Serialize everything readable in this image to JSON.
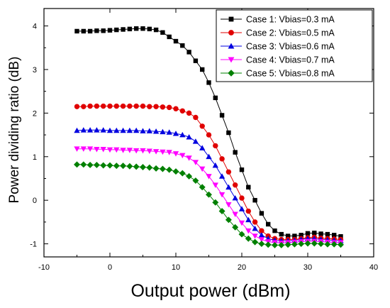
{
  "chart_data": {
    "type": "line",
    "title": "",
    "xlabel": "Output power (dBm)",
    "ylabel": "Power dividing ratio (dB)",
    "xlim": [
      -10,
      40
    ],
    "ylim": [
      -1.3,
      4.4
    ],
    "xticks": [
      -10,
      0,
      10,
      20,
      30,
      40
    ],
    "yticks": [
      -1,
      0,
      1,
      2,
      3,
      4
    ],
    "x_tick_labels": [
      "-10",
      "0",
      "10",
      "20",
      "30",
      "40"
    ],
    "y_tick_labels": [
      "-1",
      "0",
      "1",
      "2",
      "3",
      "4"
    ],
    "grid": false,
    "legend_position": "top-right",
    "x": [
      -5,
      -4,
      -3,
      -2,
      -1,
      0,
      1,
      2,
      3,
      4,
      5,
      6,
      7,
      8,
      9,
      10,
      11,
      12,
      13,
      14,
      15,
      16,
      17,
      18,
      19,
      20,
      21,
      22,
      23,
      24,
      25,
      26,
      27,
      28,
      29,
      30,
      31,
      32,
      33,
      34,
      35
    ],
    "series": [
      {
        "name": "Case 1: Vbias=0.3 mA",
        "marker": "square",
        "color": "#000000",
        "values": [
          3.88,
          3.88,
          3.88,
          3.89,
          3.89,
          3.9,
          3.91,
          3.92,
          3.93,
          3.94,
          3.94,
          3.93,
          3.91,
          3.85,
          3.75,
          3.65,
          3.55,
          3.4,
          3.2,
          3.0,
          2.7,
          2.35,
          1.95,
          1.55,
          1.1,
          0.7,
          0.3,
          0.0,
          -0.3,
          -0.55,
          -0.7,
          -0.78,
          -0.82,
          -0.82,
          -0.8,
          -0.76,
          -0.75,
          -0.77,
          -0.78,
          -0.8,
          -0.83
        ]
      },
      {
        "name": "Case 2: Vbias=0.5 mA",
        "marker": "circle",
        "color": "#e00000",
        "values": [
          2.15,
          2.15,
          2.16,
          2.16,
          2.16,
          2.16,
          2.16,
          2.16,
          2.16,
          2.16,
          2.16,
          2.15,
          2.15,
          2.14,
          2.13,
          2.1,
          2.05,
          2.0,
          1.9,
          1.7,
          1.5,
          1.25,
          0.95,
          0.65,
          0.35,
          0.05,
          -0.25,
          -0.5,
          -0.7,
          -0.82,
          -0.88,
          -0.9,
          -0.9,
          -0.9,
          -0.88,
          -0.86,
          -0.85,
          -0.87,
          -0.88,
          -0.89,
          -0.9
        ]
      },
      {
        "name": "Case 3: Vbias=0.6 mA",
        "marker": "triangle-up",
        "color": "#0000e0",
        "values": [
          1.6,
          1.61,
          1.61,
          1.61,
          1.61,
          1.6,
          1.6,
          1.6,
          1.6,
          1.6,
          1.59,
          1.59,
          1.58,
          1.57,
          1.56,
          1.53,
          1.5,
          1.45,
          1.35,
          1.2,
          1.0,
          0.8,
          0.55,
          0.3,
          0.05,
          -0.2,
          -0.45,
          -0.65,
          -0.8,
          -0.88,
          -0.92,
          -0.93,
          -0.93,
          -0.92,
          -0.9,
          -0.88,
          -0.88,
          -0.9,
          -0.91,
          -0.92,
          -0.93
        ]
      },
      {
        "name": "Case 4: Vbias=0.7 mA",
        "marker": "triangle-down",
        "color": "#ff00ff",
        "values": [
          1.18,
          1.18,
          1.18,
          1.17,
          1.17,
          1.16,
          1.16,
          1.15,
          1.15,
          1.14,
          1.14,
          1.13,
          1.12,
          1.11,
          1.1,
          1.07,
          1.03,
          0.97,
          0.87,
          0.72,
          0.55,
          0.35,
          0.13,
          -0.1,
          -0.32,
          -0.52,
          -0.7,
          -0.82,
          -0.9,
          -0.95,
          -0.97,
          -0.98,
          -0.97,
          -0.96,
          -0.95,
          -0.94,
          -0.94,
          -0.95,
          -0.96,
          -0.97,
          -0.97
        ]
      },
      {
        "name": "Case 5: Vbias=0.8 mA",
        "marker": "diamond",
        "color": "#008000",
        "values": [
          0.82,
          0.82,
          0.81,
          0.81,
          0.8,
          0.8,
          0.79,
          0.79,
          0.78,
          0.77,
          0.76,
          0.75,
          0.73,
          0.72,
          0.7,
          0.66,
          0.62,
          0.55,
          0.45,
          0.3,
          0.13,
          -0.05,
          -0.25,
          -0.45,
          -0.62,
          -0.78,
          -0.88,
          -0.96,
          -1.0,
          -1.02,
          -1.03,
          -1.03,
          -1.02,
          -1.01,
          -1.0,
          -0.99,
          -0.99,
          -1.0,
          -1.01,
          -1.01,
          -1.02
        ]
      }
    ]
  }
}
